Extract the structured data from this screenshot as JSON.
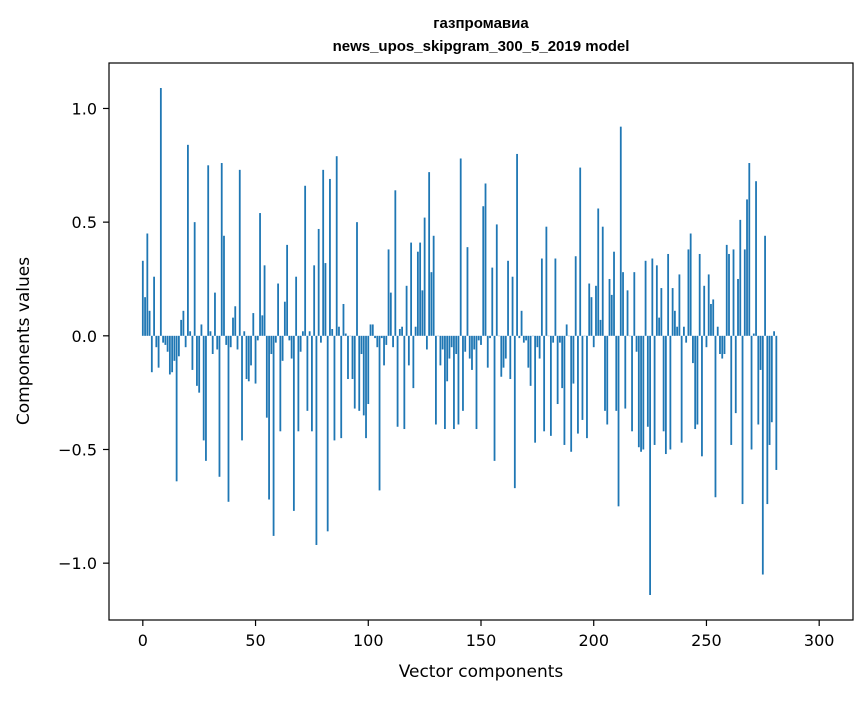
{
  "chart_data": {
    "type": "bar",
    "title": [
      "газпромавиа",
      "news_upos_skipgram_300_5_2019 model"
    ],
    "xlabel": "Vector components",
    "ylabel": "Components values",
    "xlim": [
      -15,
      315
    ],
    "ylim": [
      -1.25,
      1.2
    ],
    "xticks": [
      {
        "value": 0,
        "label": "0"
      },
      {
        "value": 50,
        "label": "50"
      },
      {
        "value": 100,
        "label": "100"
      },
      {
        "value": 150,
        "label": "150"
      },
      {
        "value": 200,
        "label": "200"
      },
      {
        "value": 250,
        "label": "250"
      },
      {
        "value": 300,
        "label": "300"
      }
    ],
    "yticks": [
      {
        "value": -1.0,
        "label": "−1.0"
      },
      {
        "value": -0.5,
        "label": "−0.5"
      },
      {
        "value": 0.0,
        "label": "0.0"
      },
      {
        "value": 0.5,
        "label": "0.5"
      },
      {
        "value": 1.0,
        "label": "1.0"
      }
    ],
    "bar_color": "#1f77b4",
    "bar_width": 0.8,
    "values": [
      0.33,
      0.17,
      0.45,
      0.11,
      -0.16,
      0.26,
      -0.05,
      -0.14,
      1.09,
      -0.03,
      -0.04,
      -0.07,
      -0.17,
      -0.16,
      -0.11,
      -0.64,
      -0.09,
      0.07,
      0.11,
      -0.05,
      0.84,
      0.02,
      -0.15,
      0.5,
      -0.22,
      -0.25,
      0.05,
      -0.46,
      -0.55,
      0.75,
      0.02,
      -0.08,
      0.19,
      -0.06,
      -0.62,
      0.76,
      0.44,
      -0.04,
      -0.73,
      -0.05,
      0.08,
      0.13,
      -0.06,
      0.73,
      -0.46,
      0.02,
      -0.19,
      -0.2,
      -0.13,
      0.1,
      -0.21,
      -0.02,
      0.54,
      0.09,
      0.31,
      -0.36,
      -0.72,
      -0.08,
      -0.88,
      -0.03,
      0.23,
      -0.42,
      -0.11,
      0.15,
      0.4,
      -0.02,
      -0.1,
      -0.77,
      0.26,
      -0.42,
      -0.07,
      0.02,
      0.66,
      -0.33,
      0.02,
      -0.42,
      0.31,
      -0.92,
      0.47,
      -0.03,
      0.73,
      0.32,
      -0.86,
      0.69,
      0.03,
      -0.46,
      0.79,
      0.04,
      -0.45,
      0.14,
      0.01,
      -0.19,
      0.0,
      -0.19,
      -0.32,
      0.5,
      -0.33,
      -0.08,
      -0.35,
      -0.45,
      -0.3,
      0.05,
      0.05,
      -0.01,
      -0.05,
      -0.68,
      -0.01,
      -0.13,
      -0.04,
      0.38,
      0.19,
      -0.05,
      0.64,
      -0.4,
      0.03,
      0.04,
      -0.41,
      0.22,
      -0.13,
      0.41,
      -0.23,
      0.04,
      0.37,
      0.41,
      0.2,
      0.52,
      -0.06,
      0.72,
      0.28,
      0.44,
      -0.39,
      0.0,
      -0.13,
      -0.06,
      -0.41,
      -0.2,
      -0.1,
      -0.05,
      -0.41,
      -0.08,
      -0.39,
      0.78,
      -0.33,
      -0.07,
      0.39,
      -0.1,
      -0.15,
      -0.06,
      -0.41,
      -0.02,
      -0.04,
      0.57,
      0.67,
      -0.14,
      -0.01,
      0.3,
      -0.55,
      0.49,
      0.0,
      -0.18,
      -0.14,
      -0.1,
      0.33,
      -0.19,
      0.26,
      -0.67,
      0.8,
      -0.01,
      0.11,
      -0.03,
      -0.02,
      -0.14,
      -0.22,
      0.0,
      -0.47,
      -0.05,
      -0.1,
      0.34,
      -0.42,
      0.48,
      0.0,
      -0.44,
      -0.03,
      0.34,
      -0.3,
      -0.03,
      -0.23,
      -0.48,
      0.05,
      0.0,
      -0.51,
      -0.21,
      0.35,
      -0.43,
      0.74,
      -0.37,
      0.0,
      -0.45,
      0.23,
      0.17,
      -0.05,
      0.22,
      0.56,
      0.07,
      0.48,
      -0.33,
      -0.39,
      0.25,
      0.18,
      0.37,
      -0.33,
      -0.75,
      0.92,
      0.28,
      -0.32,
      0.2,
      0.0,
      -0.42,
      0.28,
      -0.07,
      -0.49,
      -0.51,
      -0.5,
      0.33,
      -0.4,
      -1.14,
      0.34,
      -0.48,
      0.31,
      0.08,
      0.21,
      -0.42,
      -0.52,
      0.36,
      -0.5,
      0.21,
      0.11,
      0.04,
      0.27,
      -0.47,
      0.04,
      -0.03,
      0.38,
      0.45,
      -0.12,
      -0.41,
      -0.39,
      0.36,
      -0.53,
      0.22,
      -0.05,
      0.27,
      0.14,
      0.16,
      -0.71,
      0.04,
      -0.08,
      -0.1,
      -0.08,
      0.4,
      0.36,
      -0.48,
      0.38,
      -0.34,
      0.25,
      0.51,
      -0.74,
      0.38,
      0.6,
      0.76,
      -0.5,
      0.01,
      0.68,
      -0.39,
      -0.15,
      -1.05,
      0.44,
      -0.74,
      -0.48,
      -0.38,
      0.02,
      -0.59
    ]
  }
}
